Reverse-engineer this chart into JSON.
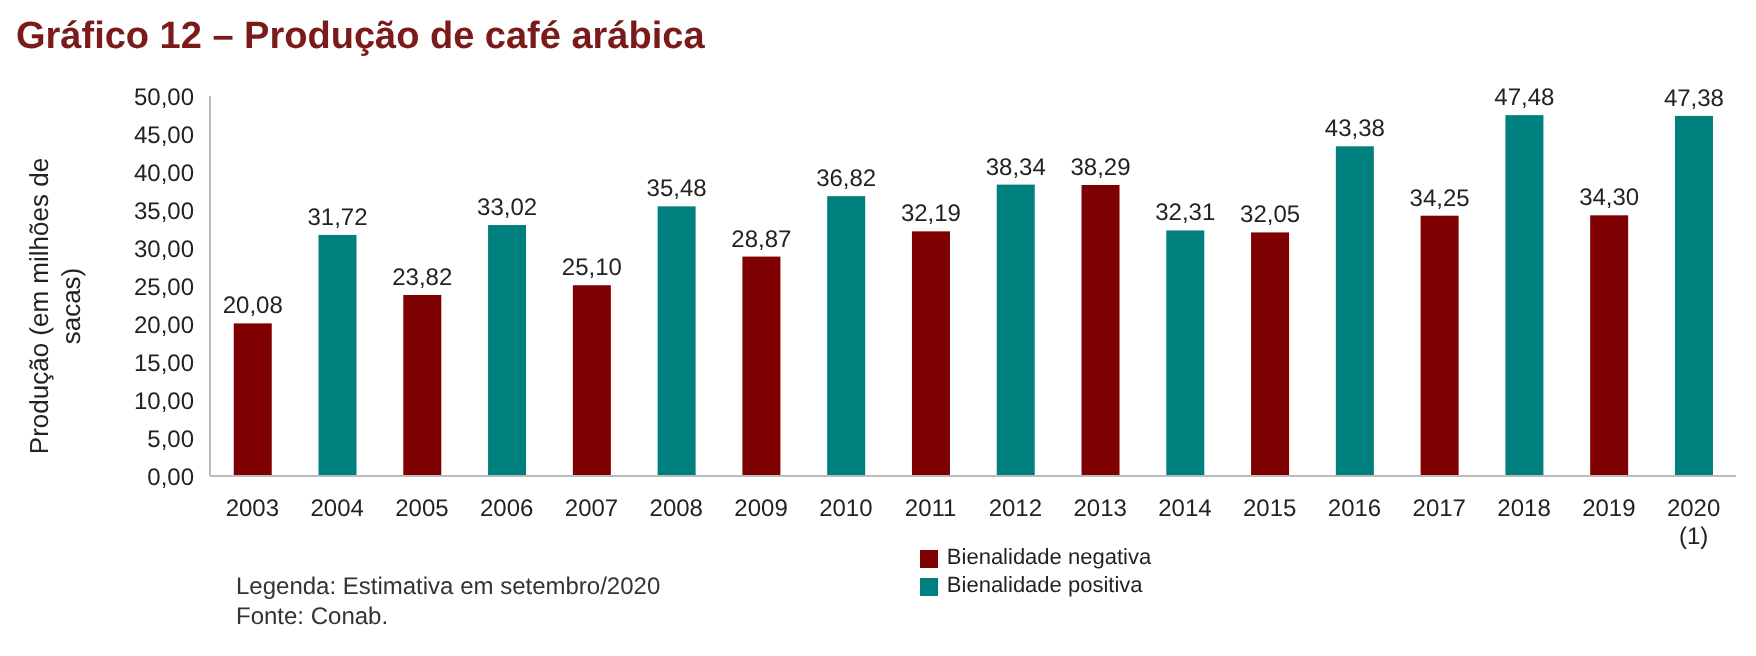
{
  "chart_data": {
    "type": "bar",
    "title": "Gráfico 12 – Produção de café arábica",
    "ylabel": "Produção (em milhões de sacas)",
    "categories": [
      "2003",
      "2004",
      "2005",
      "2006",
      "2007",
      "2008",
      "2009",
      "2010",
      "2011",
      "2012",
      "2013",
      "2014",
      "2015",
      "2016",
      "2017",
      "2018",
      "2019",
      "2020\n(1)"
    ],
    "series": [
      {
        "name": "Bienalidade negativa",
        "color": "#7f0000",
        "values": [
          20.08,
          null,
          23.82,
          null,
          25.1,
          null,
          28.87,
          null,
          32.19,
          null,
          38.29,
          null,
          32.05,
          null,
          34.25,
          null,
          34.3,
          null
        ],
        "value_labels": [
          "20,08",
          null,
          "23,82",
          null,
          "25,10",
          null,
          "28,87",
          null,
          "32,19",
          null,
          "38,29",
          null,
          "32,05",
          null,
          "34,25",
          null,
          "34,30",
          null
        ]
      },
      {
        "name": "Bienalidade positiva",
        "color": "#007f7f",
        "values": [
          null,
          31.72,
          null,
          33.02,
          null,
          35.48,
          null,
          36.82,
          null,
          38.34,
          null,
          32.31,
          null,
          43.38,
          null,
          47.48,
          null,
          47.38
        ],
        "value_labels": [
          null,
          "31,72",
          null,
          "33,02",
          null,
          "35,48",
          null,
          "36,82",
          null,
          "38,34",
          null,
          "32,31",
          null,
          "43,38",
          null,
          "47,48",
          null,
          "47,38"
        ]
      }
    ],
    "stacked": true,
    "ylim": [
      0,
      50
    ],
    "yticks": [
      {
        "value": 0,
        "label": "0,00"
      },
      {
        "value": 5,
        "label": "5,00"
      },
      {
        "value": 10,
        "label": "10,00"
      },
      {
        "value": 15,
        "label": "15,00"
      },
      {
        "value": 20,
        "label": "20,00"
      },
      {
        "value": 25,
        "label": "25,00"
      },
      {
        "value": 30,
        "label": "30,00"
      },
      {
        "value": 35,
        "label": "35,00"
      },
      {
        "value": 40,
        "label": "40,00"
      },
      {
        "value": 45,
        "label": "45,00"
      },
      {
        "value": 50,
        "label": "50,00"
      }
    ],
    "grid": false,
    "legend": "bottom",
    "annotations": [
      "Legenda: Estimativa em setembro/2020",
      "Fonte: Conab."
    ]
  }
}
